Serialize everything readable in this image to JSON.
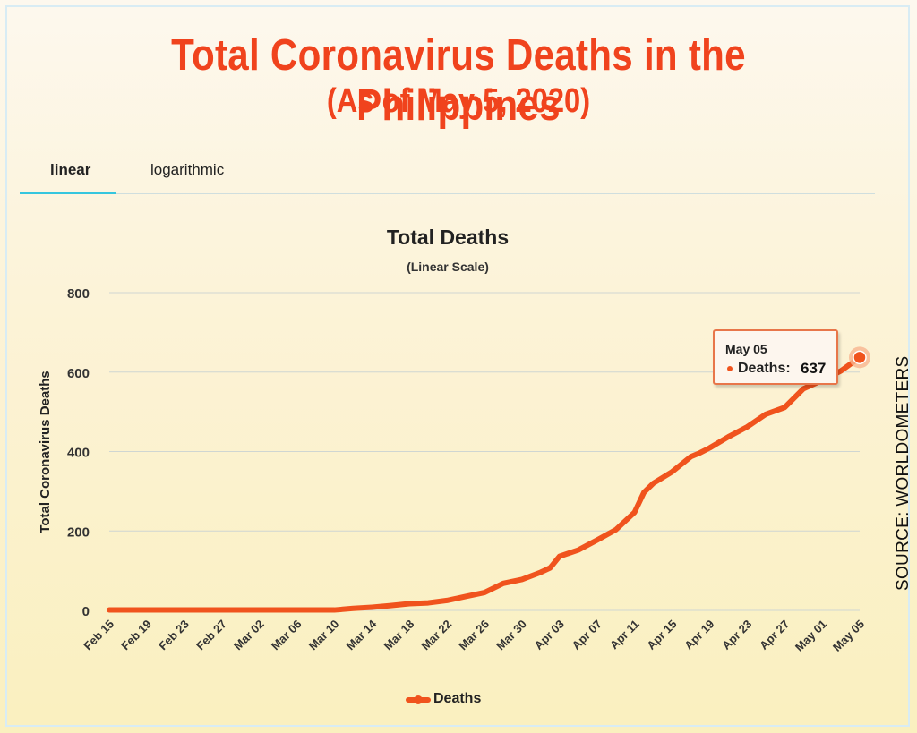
{
  "header": {
    "title": "Total Coronavirus Deaths in the Philippines",
    "subtitle": "(As of May 5, 2020)"
  },
  "tabs": [
    {
      "label": "linear",
      "active": true
    },
    {
      "label": "logarithmic",
      "active": false
    }
  ],
  "source": "SOURCE: WORLDOMETERS",
  "tooltip": {
    "date": "May 05",
    "label": "Deaths:",
    "value": "637"
  },
  "colors": {
    "title": "#f0431d",
    "series": "#f0531d",
    "tab_accent": "#35c6de"
  },
  "chart_data": {
    "type": "line",
    "title": "Total Deaths",
    "subtitle": "(Linear Scale)",
    "ylabel": "Total Coronavirus Deaths",
    "xlabel": "",
    "ylim": [
      0,
      800
    ],
    "yticks": [
      0,
      200,
      400,
      600,
      800
    ],
    "grid": true,
    "legend": "bottom",
    "xtick_labels": [
      "Feb 15",
      "Feb 19",
      "Feb 23",
      "Feb 27",
      "Mar 02",
      "Mar 06",
      "Mar 10",
      "Mar 14",
      "Mar 18",
      "Mar 22",
      "Mar 26",
      "Mar 30",
      "Apr 03",
      "Apr 07",
      "Apr 11",
      "Apr 15",
      "Apr 19",
      "Apr 23",
      "Apr 27",
      "May 01",
      "May 05"
    ],
    "series": [
      {
        "name": "Deaths",
        "x": [
          "Feb 15",
          "Feb 19",
          "Feb 23",
          "Feb 27",
          "Mar 02",
          "Mar 06",
          "Mar 10",
          "Mar 12",
          "Mar 14",
          "Mar 16",
          "Mar 18",
          "Mar 20",
          "Mar 22",
          "Mar 24",
          "Mar 26",
          "Mar 28",
          "Mar 30",
          "Apr 01",
          "Apr 02",
          "Apr 03",
          "Apr 05",
          "Apr 07",
          "Apr 09",
          "Apr 11",
          "Apr 12",
          "Apr 13",
          "Apr 15",
          "Apr 17",
          "Apr 18",
          "Apr 19",
          "Apr 21",
          "Apr 23",
          "Apr 25",
          "Apr 27",
          "Apr 29",
          "May 01",
          "May 03",
          "May 05"
        ],
        "values": [
          1,
          1,
          1,
          1,
          1,
          1,
          1,
          5,
          8,
          12,
          17,
          19,
          25,
          35,
          45,
          68,
          78,
          96,
          107,
          136,
          152,
          177,
          203,
          247,
          297,
          320,
          349,
          387,
          397,
          409,
          437,
          462,
          494,
          511,
          558,
          579,
          603,
          637
        ]
      }
    ]
  }
}
